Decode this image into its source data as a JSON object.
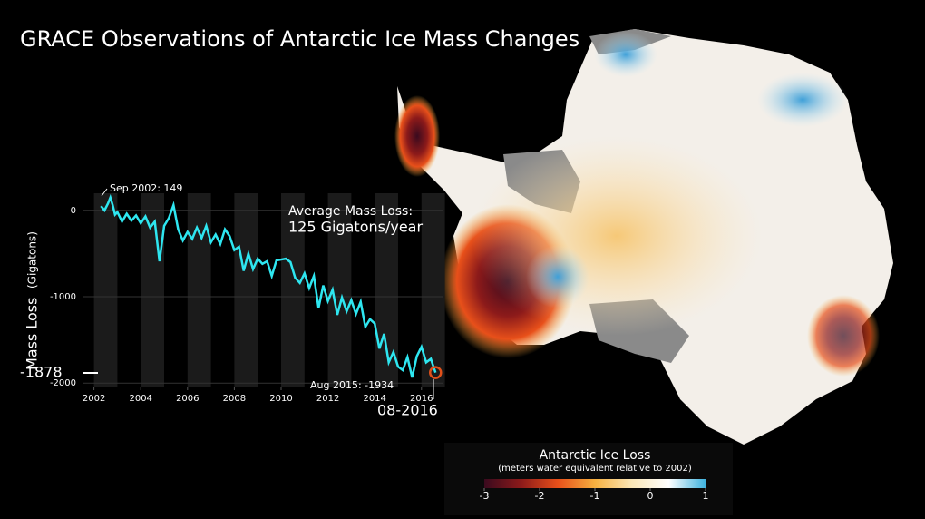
{
  "chart_data": [
    {
      "type": "line",
      "title": "GRACE Observations of Antarctic Ice Mass Changes",
      "y_label": "Mass Loss",
      "y_unit": "(Gigatons)",
      "x": [
        2002.3,
        2002.45,
        2002.6,
        2002.7,
        2002.8,
        2002.9,
        2003.0,
        2003.2,
        2003.4,
        2003.6,
        2003.8,
        2004.0,
        2004.2,
        2004.4,
        2004.6,
        2004.8,
        2005.0,
        2005.2,
        2005.4,
        2005.6,
        2005.8,
        2006.0,
        2006.2,
        2006.4,
        2006.6,
        2006.8,
        2007.0,
        2007.2,
        2007.4,
        2007.6,
        2007.8,
        2008.0,
        2008.2,
        2008.4,
        2008.6,
        2008.8,
        2009.0,
        2009.2,
        2009.4,
        2009.6,
        2009.8,
        2010.0,
        2010.2,
        2010.4,
        2010.6,
        2010.8,
        2011.0,
        2011.2,
        2011.4,
        2011.6,
        2011.8,
        2012.0,
        2012.2,
        2012.4,
        2012.6,
        2012.8,
        2013.0,
        2013.2,
        2013.4,
        2013.6,
        2013.8,
        2014.0,
        2014.2,
        2014.4,
        2014.6,
        2014.8,
        2015.0,
        2015.2,
        2015.4,
        2015.6,
        2015.8,
        2016.0,
        2016.2,
        2016.4,
        2016.6
      ],
      "series": [
        {
          "name": "Mass Loss",
          "color": "#2ee6f0",
          "values": [
            50,
            0,
            80,
            149,
            60,
            -50,
            -20,
            -130,
            -40,
            -120,
            -60,
            -150,
            -70,
            -200,
            -130,
            -590,
            -180,
            -90,
            60,
            -220,
            -350,
            -250,
            -330,
            -200,
            -320,
            -180,
            -370,
            -280,
            -390,
            -220,
            -300,
            -460,
            -420,
            -700,
            -500,
            -680,
            -560,
            -620,
            -590,
            -760,
            -580,
            -570,
            -560,
            -600,
            -780,
            -840,
            -730,
            -900,
            -760,
            -1130,
            -870,
            -1050,
            -920,
            -1210,
            -1010,
            -1170,
            -1040,
            -1200,
            -1060,
            -1350,
            -1260,
            -1310,
            -1600,
            -1430,
            -1760,
            -1640,
            -1810,
            -1850,
            -1700,
            -1934,
            -1690,
            -1580,
            -1760,
            -1720,
            -1878
          ]
        }
      ],
      "xlim": [
        2001.55,
        2016.9
      ],
      "xticks": [
        2002,
        2004,
        2006,
        2008,
        2010,
        2012,
        2014,
        2016
      ],
      "ylim": [
        -2050,
        250
      ],
      "yticks": [
        0,
        -1000,
        -2000
      ],
      "annotations": [
        "Sep 2002: 149",
        "Aug 2015: -1934",
        "08-2016",
        "-1878",
        "Average Mass Loss:",
        "125 Gigatons/year"
      ]
    },
    {
      "type": "colorbar",
      "title": "Antarctic Ice Loss",
      "subtitle": "(meters water equivalent relative to 2002)",
      "lim": [
        -3,
        1
      ],
      "ticks": [
        -3,
        -2,
        -1,
        0,
        1
      ],
      "colors": [
        "#3a0a1e",
        "#8c1a1a",
        "#e8501a",
        "#f6b040",
        "#fbe7b8",
        "#ffffff",
        "#3fb3df"
      ]
    }
  ]
}
